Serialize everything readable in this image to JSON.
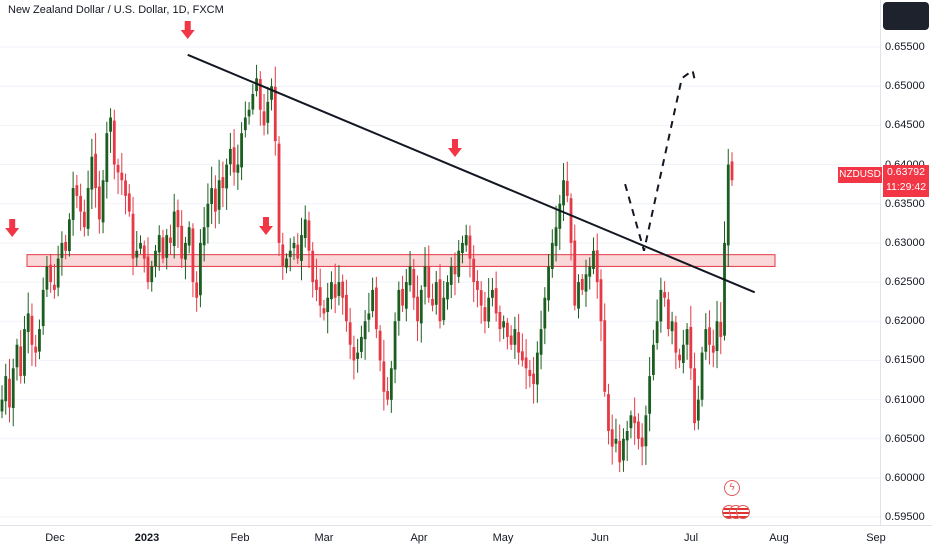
{
  "header": {
    "title": "New Zealand Dollar / U.S. Dollar, 1D, FXCM"
  },
  "price_axis": {
    "symbol": "NZDUSD",
    "last_price": "0.63792",
    "countdown": "11:29:42",
    "tick_labels": [
      "0.65500",
      "0.65000",
      "0.64500",
      "0.64000",
      "0.63500",
      "0.63000",
      "0.62500",
      "0.62000",
      "0.61500",
      "0.61000",
      "0.60500",
      "0.60000",
      "0.59500"
    ]
  },
  "time_axis": {
    "tick_labels": [
      "Dec",
      "2023",
      "Feb",
      "Mar",
      "Apr",
      "May",
      "Jun",
      "Jul",
      "Aug",
      "Sep"
    ]
  },
  "colors": {
    "up": "#1b5e20",
    "down": "#e53945",
    "arrow": "#f23645",
    "zone_fill": "#f8c9cc",
    "zone_border": "#e53945",
    "line": "#131722"
  },
  "icons": [
    "arrow-down-icon",
    "lightning-icon",
    "flag-icon"
  ],
  "chart_data": {
    "type": "candlestick",
    "title": "New Zealand Dollar / U.S. Dollar, 1D, FXCM",
    "x": {
      "type": "time",
      "range": [
        "2022-11-23",
        "2023-09-05"
      ]
    },
    "ylim": [
      0.594,
      0.661
    ],
    "last_price": 0.63792,
    "candles_close": [
      0.61,
      0.613,
      0.609,
      0.614,
      0.617,
      0.613,
      0.619,
      0.621,
      0.617,
      0.616,
      0.619,
      0.624,
      0.627,
      0.625,
      0.624,
      0.628,
      0.63,
      0.629,
      0.633,
      0.637,
      0.636,
      0.634,
      0.632,
      0.637,
      0.641,
      0.637,
      0.633,
      0.638,
      0.644,
      0.646,
      0.64,
      0.639,
      0.638,
      0.636,
      0.634,
      0.628,
      0.629,
      0.63,
      0.628,
      0.625,
      0.627,
      0.629,
      0.631,
      0.628,
      0.631,
      0.63,
      0.634,
      0.632,
      0.628,
      0.63,
      0.632,
      0.625,
      0.623,
      0.63,
      0.632,
      0.635,
      0.637,
      0.634,
      0.638,
      0.637,
      0.64,
      0.642,
      0.639,
      0.64,
      0.644,
      0.646,
      0.647,
      0.649,
      0.651,
      0.647,
      0.645,
      0.648,
      0.65,
      0.643,
      0.63,
      0.627,
      0.628,
      0.629,
      0.63,
      0.628,
      0.631,
      0.633,
      0.629,
      0.625,
      0.624,
      0.622,
      0.621,
      0.623,
      0.625,
      0.623,
      0.625,
      0.623,
      0.62,
      0.617,
      0.615,
      0.616,
      0.618,
      0.62,
      0.621,
      0.624,
      0.619,
      0.615,
      0.611,
      0.61,
      0.614,
      0.62,
      0.624,
      0.622,
      0.625,
      0.627,
      0.623,
      0.62,
      0.624,
      0.627,
      0.623,
      0.622,
      0.625,
      0.62,
      0.623,
      0.625,
      0.627,
      0.626,
      0.629,
      0.63,
      0.631,
      0.628,
      0.625,
      0.624,
      0.622,
      0.62,
      0.623,
      0.624,
      0.621,
      0.619,
      0.62,
      0.618,
      0.617,
      0.619,
      0.616,
      0.615,
      0.614,
      0.613,
      0.612,
      0.616,
      0.619,
      0.623,
      0.627,
      0.63,
      0.632,
      0.635,
      0.638,
      0.636,
      0.63,
      0.622,
      0.625,
      0.624,
      0.626,
      0.627,
      0.629,
      0.625,
      0.62,
      0.611,
      0.606,
      0.604,
      0.605,
      0.602,
      0.605,
      0.606,
      0.608,
      0.607,
      0.605,
      0.604,
      0.608,
      0.613,
      0.617,
      0.62,
      0.624,
      0.623,
      0.619,
      0.62,
      0.616,
      0.615,
      0.617,
      0.619,
      0.614,
      0.607,
      0.61,
      0.616,
      0.619,
      0.617,
      0.616,
      0.62,
      0.618,
      0.63,
      0.64,
      0.638
    ],
    "trendline": {
      "start": {
        "date": "2023-02-02",
        "price": 0.654
      },
      "end": {
        "date": "2023-08-31",
        "price": 0.6237
      }
    },
    "support_zone": [
      0.627,
      0.6285
    ],
    "projection": [
      {
        "date": "2023-07-14",
        "price": 0.6375
      },
      {
        "date": "2023-07-21",
        "price": 0.629
      },
      {
        "date": "2023-08-04",
        "price": 0.651
      },
      {
        "date": "2023-08-08",
        "price": 0.652
      },
      {
        "date": "2023-08-09",
        "price": 0.6505
      }
    ],
    "markers": [
      {
        "type": "arrow-down",
        "date": "2022-11-29"
      },
      {
        "type": "arrow-down",
        "date": "2023-02-02"
      },
      {
        "type": "arrow-down",
        "date": "2023-03-03"
      },
      {
        "type": "arrow-down",
        "date": "2023-05-12"
      }
    ]
  }
}
